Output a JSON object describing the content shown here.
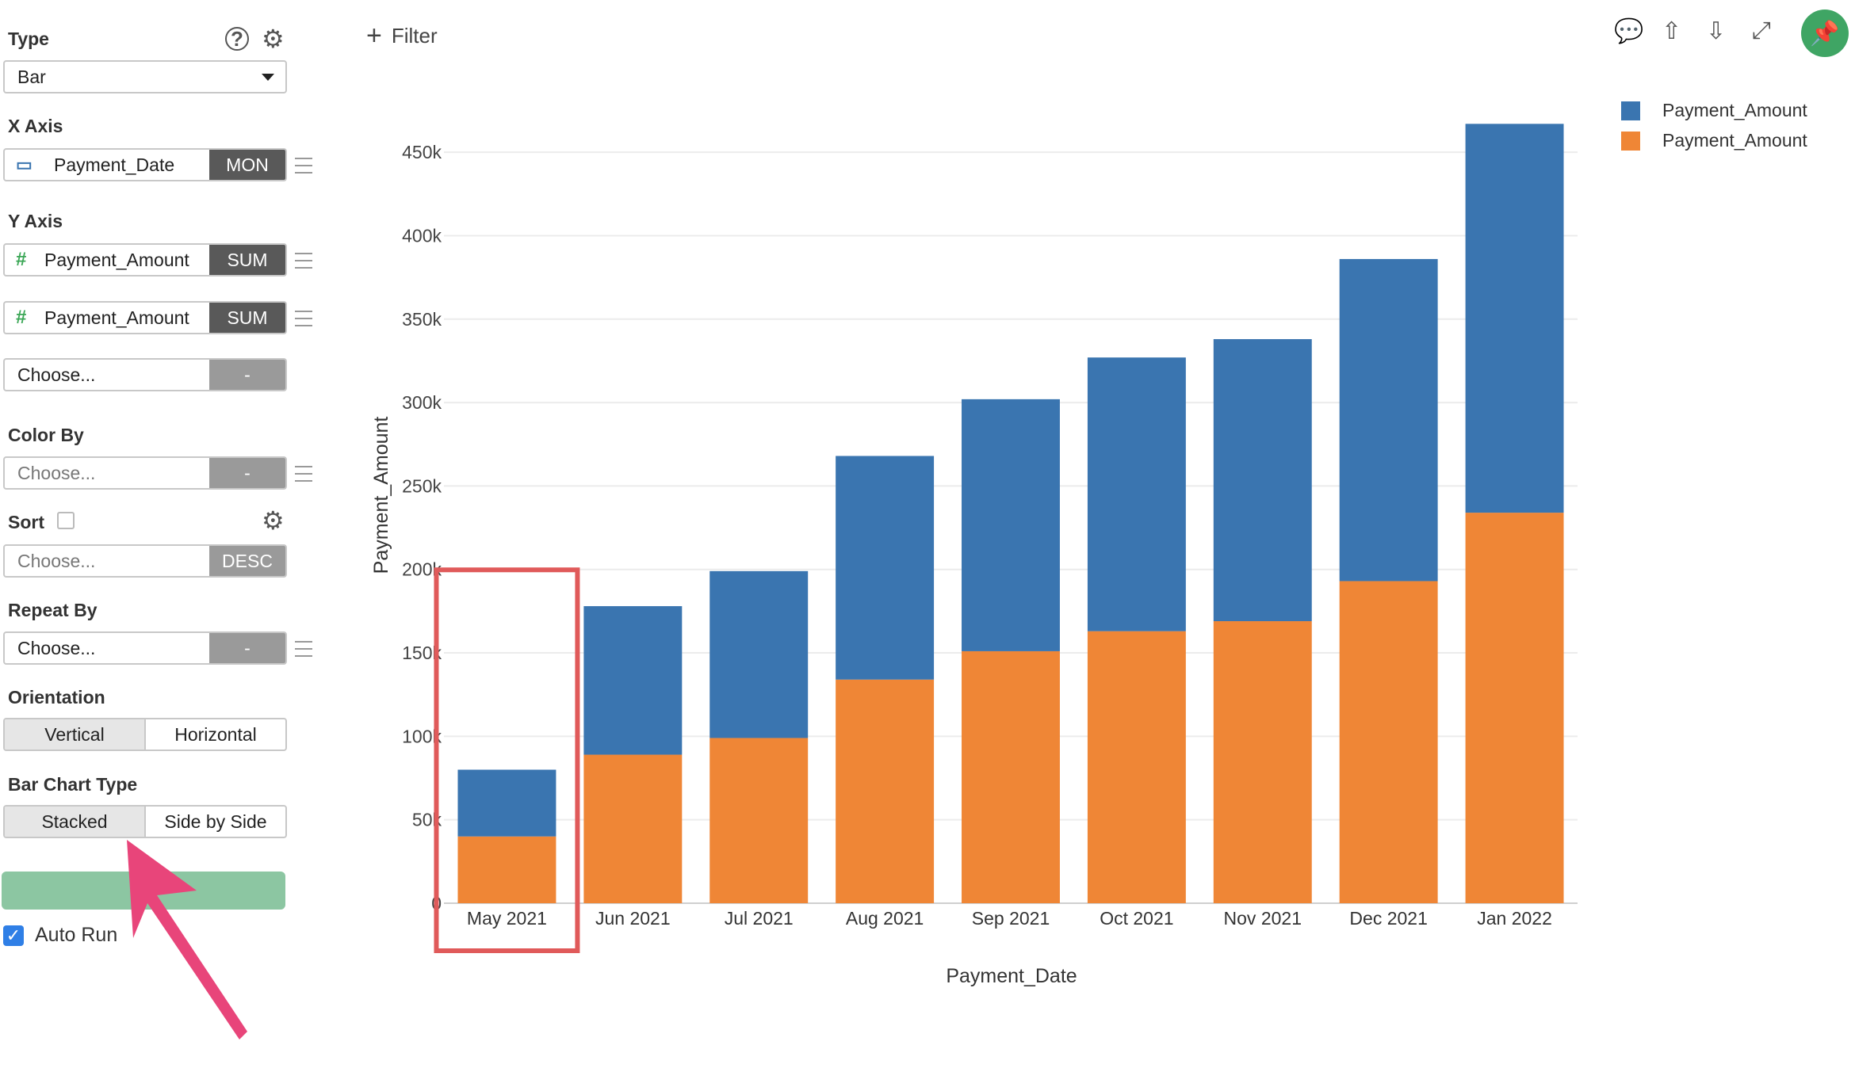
{
  "sidebar": {
    "type_label": "Type",
    "type_value": "Bar",
    "xaxis_label": "X Axis",
    "xaxis_field": "Payment_Date",
    "xaxis_agg": "MON",
    "yaxis_label": "Y Axis",
    "yaxis_fields": [
      {
        "name": "Payment_Amount",
        "agg": "SUM"
      },
      {
        "name": "Payment_Amount",
        "agg": "SUM"
      }
    ],
    "yaxis_choose": "Choose...",
    "yaxis_choose_agg": "-",
    "colorby_label": "Color By",
    "colorby_value": "Choose...",
    "colorby_agg": "-",
    "sort_label": "Sort",
    "sort_value": "Choose...",
    "sort_order": "DESC",
    "repeat_label": "Repeat By",
    "repeat_value": "Choose...",
    "repeat_agg": "-",
    "orientation_label": "Orientation",
    "orientation_options": [
      "Vertical",
      "Horizontal"
    ],
    "barchart_label": "Bar Chart Type",
    "barchart_options": [
      "Stacked",
      "Side by Side"
    ],
    "autorun_label": "Auto Run"
  },
  "toolbar": {
    "filter_label": "Filter",
    "add_symbol": "+"
  },
  "colors": {
    "series_blue": "#3a75b0",
    "series_orange": "#ef8636",
    "highlight": "#e05a5a",
    "accent_green": "#3fa564"
  },
  "chart_data": {
    "type": "bar",
    "stacked": true,
    "categories": [
      "May 2021",
      "Jun 2021",
      "Jul 2021",
      "Aug 2021",
      "Sep 2021",
      "Oct 2021",
      "Nov 2021",
      "Dec 2021",
      "Jan 2022"
    ],
    "series": [
      {
        "name": "Payment_Amount",
        "color": "#ef8636",
        "values": [
          40000,
          89000,
          99000,
          134000,
          151000,
          163000,
          169000,
          193000,
          234000
        ]
      },
      {
        "name": "Payment_Amount",
        "color": "#3a75b0",
        "values": [
          40000,
          89000,
          100000,
          134000,
          151000,
          164000,
          169000,
          193000,
          233000
        ]
      }
    ],
    "xlabel": "Payment_Date",
    "ylabel": "Payment_Amount",
    "ylim": [
      0,
      470000
    ],
    "yticks": [
      0,
      50000,
      100000,
      150000,
      200000,
      250000,
      300000,
      350000,
      400000,
      450000
    ],
    "ytick_labels": [
      "0",
      "50k",
      "100k",
      "150k",
      "200k",
      "250k",
      "300k",
      "350k",
      "400k",
      "450k"
    ],
    "grid": true,
    "legend": "top-right",
    "highlighted_category": "May 2021"
  }
}
